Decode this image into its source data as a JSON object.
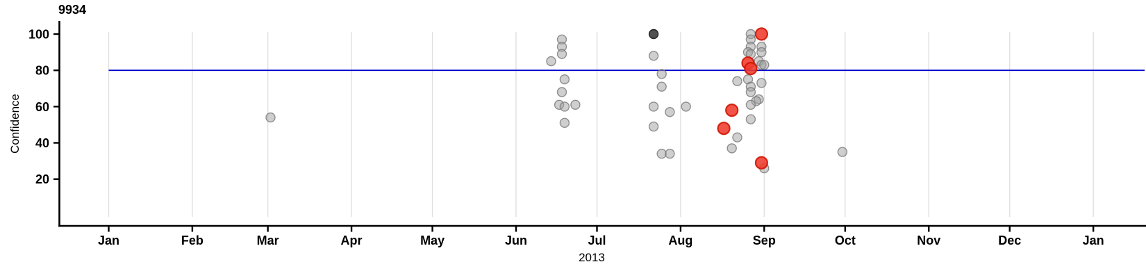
{
  "chart_data": {
    "type": "scatter",
    "title": "9934",
    "xlabel": "2013",
    "ylabel": "Confidence",
    "x_axis": {
      "range": [
        "2013-01-01",
        "2014-01-20"
      ],
      "ticks": [
        {
          "date": "2013-01-01",
          "label": "Jan"
        },
        {
          "date": "2013-02-01",
          "label": "Feb"
        },
        {
          "date": "2013-03-01",
          "label": "Mar"
        },
        {
          "date": "2013-04-01",
          "label": "Apr"
        },
        {
          "date": "2013-05-01",
          "label": "May"
        },
        {
          "date": "2013-06-01",
          "label": "Jun"
        },
        {
          "date": "2013-07-01",
          "label": "Jul"
        },
        {
          "date": "2013-08-01",
          "label": "Aug"
        },
        {
          "date": "2013-09-01",
          "label": "Sep"
        },
        {
          "date": "2013-10-01",
          "label": "Oct"
        },
        {
          "date": "2013-11-01",
          "label": "Nov"
        },
        {
          "date": "2013-12-01",
          "label": "Dec"
        },
        {
          "date": "2014-01-01",
          "label": "Jan"
        }
      ]
    },
    "y_axis": {
      "ticks": [
        20,
        40,
        60,
        80,
        100
      ],
      "range": [
        0,
        105
      ]
    },
    "reference_line": {
      "y": 80
    },
    "grid": {
      "vertical_month_gridlines": true,
      "horizontal_gridlines": false
    },
    "legend_position": "none",
    "series": [
      {
        "name": "observations",
        "style": "gray",
        "points": [
          [
            "2013-03-02",
            54
          ],
          [
            "2013-06-14",
            85
          ],
          [
            "2013-06-18",
            97
          ],
          [
            "2013-06-18",
            93
          ],
          [
            "2013-06-18",
            89
          ],
          [
            "2013-06-19",
            75
          ],
          [
            "2013-06-18",
            68
          ],
          [
            "2013-06-17",
            61
          ],
          [
            "2013-06-19",
            60
          ],
          [
            "2013-06-23",
            61
          ],
          [
            "2013-06-19",
            51
          ],
          [
            "2013-07-22",
            88
          ],
          [
            "2013-07-25",
            78
          ],
          [
            "2013-07-25",
            71
          ],
          [
            "2013-07-22",
            60
          ],
          [
            "2013-07-28",
            57
          ],
          [
            "2013-07-22",
            49
          ],
          [
            "2013-07-25",
            34
          ],
          [
            "2013-07-28",
            34
          ],
          [
            "2013-08-03",
            60
          ],
          [
            "2013-08-22",
            43
          ],
          [
            "2013-08-20",
            37
          ],
          [
            "2013-08-22",
            74
          ],
          [
            "2013-08-26",
            75
          ],
          [
            "2013-08-27",
            100
          ],
          [
            "2013-08-27",
            97
          ],
          [
            "2013-08-27",
            93
          ],
          [
            "2013-08-31",
            93
          ],
          [
            "2013-08-26",
            90
          ],
          [
            "2013-08-27",
            89
          ],
          [
            "2013-08-31",
            90
          ],
          [
            "2013-08-30",
            85
          ],
          [
            "2013-08-31",
            83
          ],
          [
            "2013-09-01",
            83
          ],
          [
            "2013-08-31",
            73
          ],
          [
            "2013-08-27",
            71
          ],
          [
            "2013-08-27",
            68
          ],
          [
            "2013-08-30",
            64
          ],
          [
            "2013-08-29",
            63
          ],
          [
            "2013-08-27",
            61
          ],
          [
            "2013-08-27",
            53
          ],
          [
            "2013-09-01",
            26
          ],
          [
            "2013-09-30",
            35
          ]
        ]
      },
      {
        "name": "observation-dark",
        "style": "dark",
        "points": [
          [
            "2013-07-22",
            100
          ]
        ]
      },
      {
        "name": "highlighted-observations",
        "style": "red",
        "points": [
          [
            "2013-08-31",
            100
          ],
          [
            "2013-08-26",
            84
          ],
          [
            "2013-08-27",
            81
          ],
          [
            "2013-08-20",
            58
          ],
          [
            "2013-08-17",
            48
          ],
          [
            "2013-08-31",
            29
          ]
        ]
      }
    ]
  },
  "colors": {
    "background": "#ffffff",
    "axis": "#000000",
    "grid": "#e0e0e0",
    "reference_line": "#0000cd",
    "gray_point_fill": "#a0a0a0",
    "gray_point_stroke": "#787878",
    "dark_point_fill": "#333333",
    "dark_point_stroke": "#111111",
    "red_point_fill": "#f03b2e",
    "red_point_stroke": "#d01606"
  }
}
